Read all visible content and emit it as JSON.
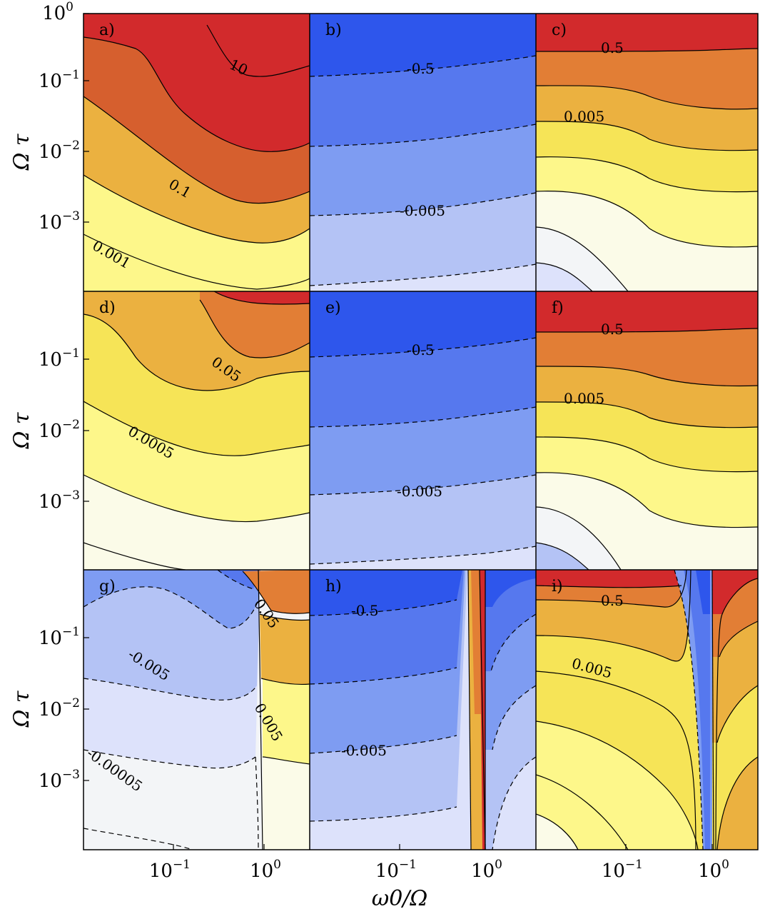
{
  "chart_data": {
    "type": "contour",
    "layout": "3x3 grid of filled contour plots sharing axes",
    "xlabel": "ω0/Ω",
    "ylabel": "Ω τ",
    "x_scale": "log",
    "y_scale": "log",
    "x_ticks": [
      "10−1",
      "100"
    ],
    "y_ticks": [
      "10−1",
      "10−2",
      "10−3"
    ],
    "y_top_tick": "100",
    "positive_palette": [
      "#fbfbe8",
      "#fdf78a",
      "#f6e457",
      "#ebb140",
      "#e27e35",
      "#d65f2e",
      "#d22a2c"
    ],
    "negative_palette": [
      "#f3f5f7",
      "#dde2fb",
      "#b4c3f5",
      "#7e9cf2",
      "#5678ee",
      "#2e56ec"
    ],
    "panels": [
      {
        "id": "a",
        "label": "a)",
        "sign": "positive",
        "contour_labels": [
          "10",
          "0.1",
          "0.001"
        ]
      },
      {
        "id": "b",
        "label": "b)",
        "sign": "negative",
        "contour_labels": [
          "-0.5",
          "-0.005"
        ]
      },
      {
        "id": "c",
        "label": "c)",
        "sign": "positive",
        "contour_labels": [
          "0.5",
          "0.005"
        ]
      },
      {
        "id": "d",
        "label": "d)",
        "sign": "positive",
        "contour_labels": [
          "0.05",
          "0.0005"
        ]
      },
      {
        "id": "e",
        "label": "e)",
        "sign": "negative",
        "contour_labels": [
          "-0.5",
          "-0.005"
        ]
      },
      {
        "id": "f",
        "label": "f)",
        "sign": "positive",
        "contour_labels": [
          "0.5",
          "0.005"
        ]
      },
      {
        "id": "g",
        "label": "g)",
        "sign": "mixed",
        "contour_labels": [
          "0.05",
          "-0.005",
          "0.005",
          "-0.00005"
        ]
      },
      {
        "id": "h",
        "label": "h)",
        "sign": "mixed",
        "contour_labels": [
          "-0.5",
          "-0.005"
        ]
      },
      {
        "id": "i",
        "label": "i)",
        "sign": "mixed",
        "contour_labels": [
          "0.5",
          "0.005"
        ]
      }
    ]
  }
}
